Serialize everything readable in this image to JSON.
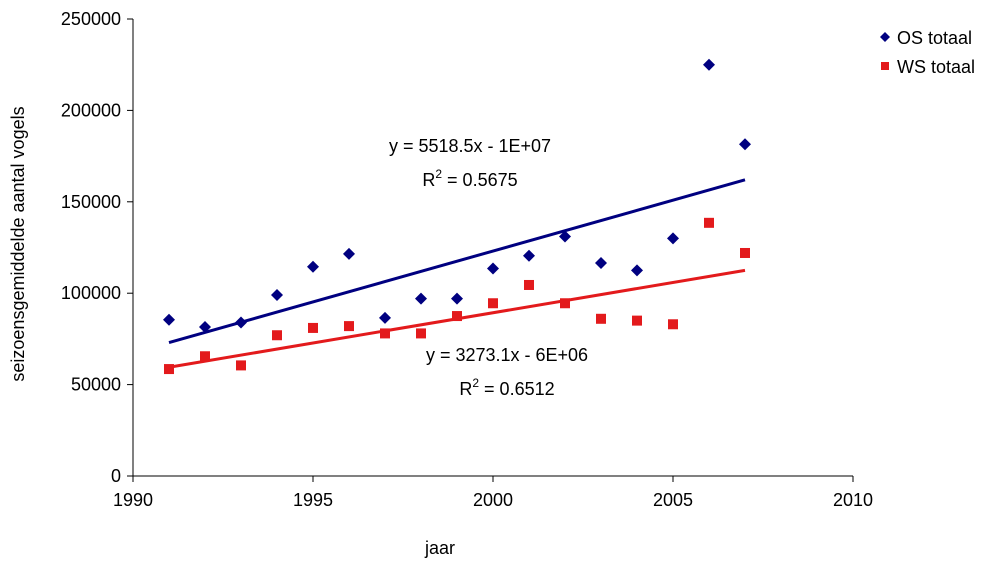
{
  "chart_data": {
    "type": "scatter",
    "xlabel": "jaar",
    "ylabel": "seizoensgemiddelde aantal vogels",
    "xlim": [
      1990,
      2010
    ],
    "ylim": [
      0,
      250000
    ],
    "xticks": [
      1990,
      1995,
      2000,
      2005,
      2010
    ],
    "yticks": [
      0,
      50000,
      100000,
      150000,
      200000,
      250000
    ],
    "grid": false,
    "legend_position": "top-right",
    "series": [
      {
        "name": "OS totaal",
        "marker": "diamond",
        "color": "#000080",
        "x": [
          1991,
          1992,
          1993,
          1994,
          1995,
          1996,
          1997,
          1998,
          1999,
          2000,
          2001,
          2002,
          2003,
          2004,
          2005,
          2006,
          2007
        ],
        "y": [
          85500,
          81500,
          84000,
          99000,
          114500,
          121500,
          86500,
          97000,
          97000,
          113500,
          120500,
          131000,
          116500,
          112500,
          130000,
          225000,
          181500
        ],
        "trendline": {
          "x": [
            1991,
            2007
          ],
          "y": [
            73000,
            162000
          ],
          "equation": "y = 5518.5x - 1E+07",
          "r2_prefix": "R",
          "r2_exp": "2",
          "r2_value": " = 0.5675"
        }
      },
      {
        "name": "WS totaal",
        "marker": "square",
        "color": "#e31a1c",
        "x": [
          1991,
          1992,
          1993,
          1994,
          1995,
          1996,
          1997,
          1998,
          1999,
          2000,
          2001,
          2002,
          2003,
          2004,
          2005,
          2006,
          2007
        ],
        "y": [
          58500,
          65500,
          60500,
          77000,
          81000,
          82000,
          78000,
          78000,
          87500,
          94500,
          104500,
          94500,
          86000,
          85000,
          83000,
          138500,
          122000
        ],
        "trendline": {
          "x": [
            1991,
            2007
          ],
          "y": [
            59500,
            112500
          ],
          "equation": "y = 3273.1x - 6E+06",
          "r2_prefix": "R",
          "r2_exp": "2",
          "r2_value": " = 0.6512"
        }
      }
    ]
  }
}
